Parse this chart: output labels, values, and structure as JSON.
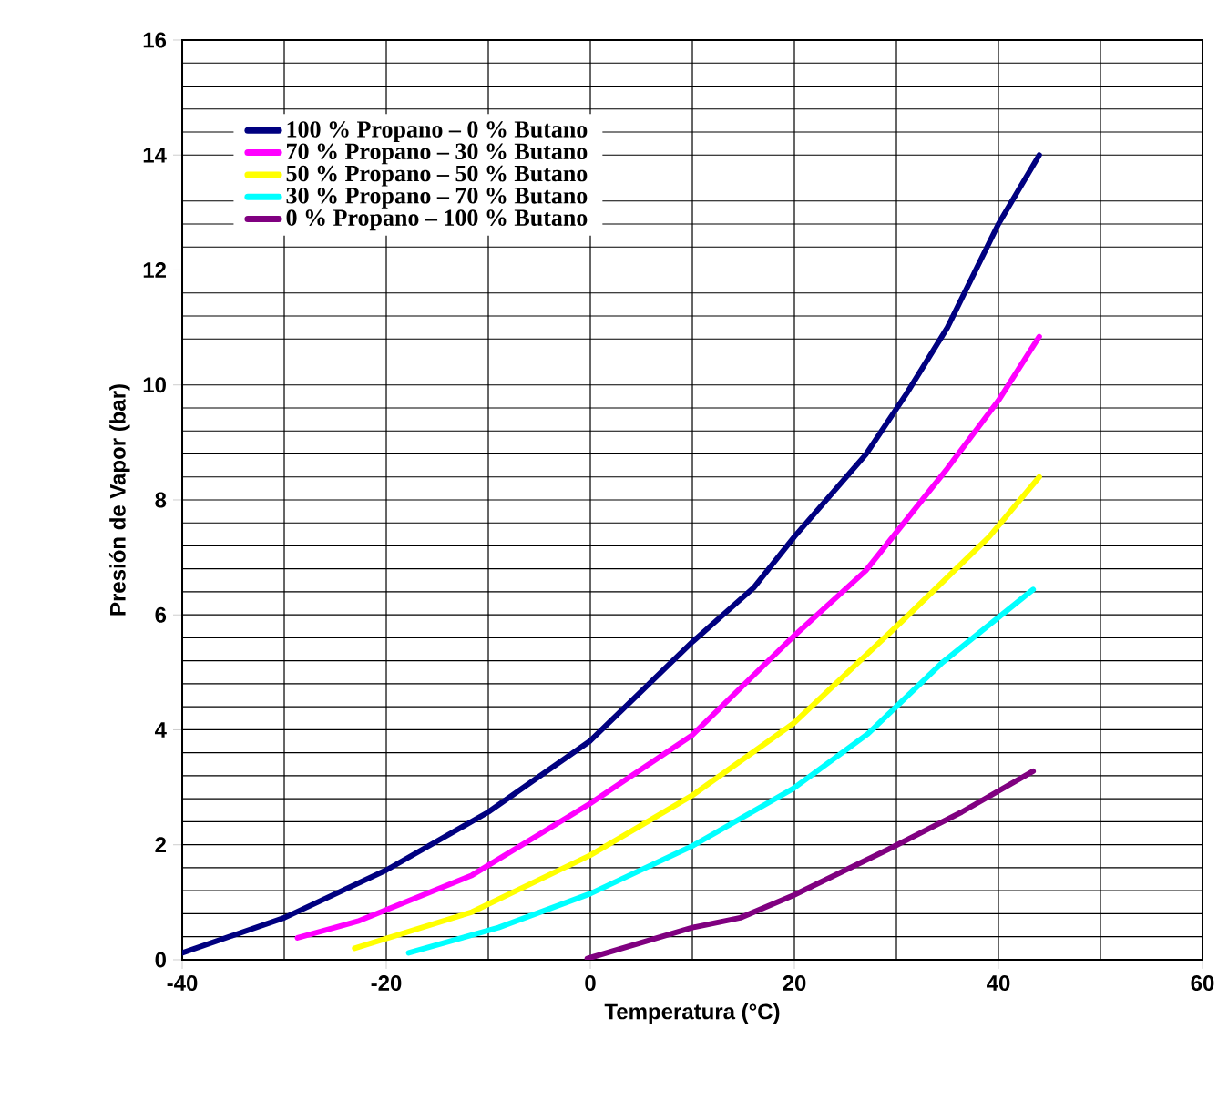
{
  "chart_data": {
    "type": "line",
    "xlabel": "Temperatura (°C)",
    "ylabel": "Presión de Vapor (bar)",
    "xlim": [
      -40,
      60
    ],
    "ylim": [
      0,
      16
    ],
    "xticks": [
      -40,
      -20,
      0,
      20,
      40,
      60
    ],
    "yticks": [
      0,
      2,
      4,
      6,
      8,
      10,
      12,
      14,
      16
    ],
    "grid": true,
    "legend": "top left",
    "marker": "none",
    "line_style": "solid",
    "series": [
      {
        "name": "100 % Propano – 0 % Butano",
        "color": "#000080",
        "x": [
          -40,
          -30,
          -20,
          -10,
          0,
          10,
          16,
          20,
          27,
          31,
          35,
          40,
          44
        ],
        "values": [
          0.12,
          0.73,
          1.56,
          2.57,
          3.81,
          5.53,
          6.47,
          7.36,
          8.79,
          9.85,
          11.0,
          12.8,
          14.0
        ]
      },
      {
        "name": "70 % Propano – 30 % Butano",
        "color": "#ff00ff",
        "x": [
          -28.7,
          -22.8,
          -11.6,
          0,
          10,
          20,
          27,
          35,
          40,
          44
        ],
        "values": [
          0.38,
          0.67,
          1.47,
          2.72,
          3.91,
          5.64,
          6.77,
          8.55,
          9.73,
          10.84
        ]
      },
      {
        "name": "50 % Propano – 50 % Butano",
        "color": "#ffff00",
        "x": [
          -23.1,
          -11.6,
          0,
          10,
          19.9,
          30.5,
          39.1,
          44
        ],
        "values": [
          0.2,
          0.83,
          1.82,
          2.86,
          4.11,
          5.88,
          7.36,
          8.4
        ]
      },
      {
        "name": "30 % Propano – 70 % Butano",
        "color": "#00ffff",
        "x": [
          -17.8,
          -9,
          0,
          10,
          19.9,
          27.2,
          34.5,
          43.4
        ],
        "values": [
          0.12,
          0.56,
          1.15,
          1.98,
          2.98,
          3.93,
          5.17,
          6.44
        ]
      },
      {
        "name": "0 % Propano – 100 % Butano",
        "color": "#800080",
        "x": [
          -0.3,
          10,
          14.7,
          19.9,
          29.2,
          36.4,
          43.4
        ],
        "values": [
          0.02,
          0.56,
          0.73,
          1.12,
          1.92,
          2.57,
          3.28
        ]
      }
    ]
  }
}
